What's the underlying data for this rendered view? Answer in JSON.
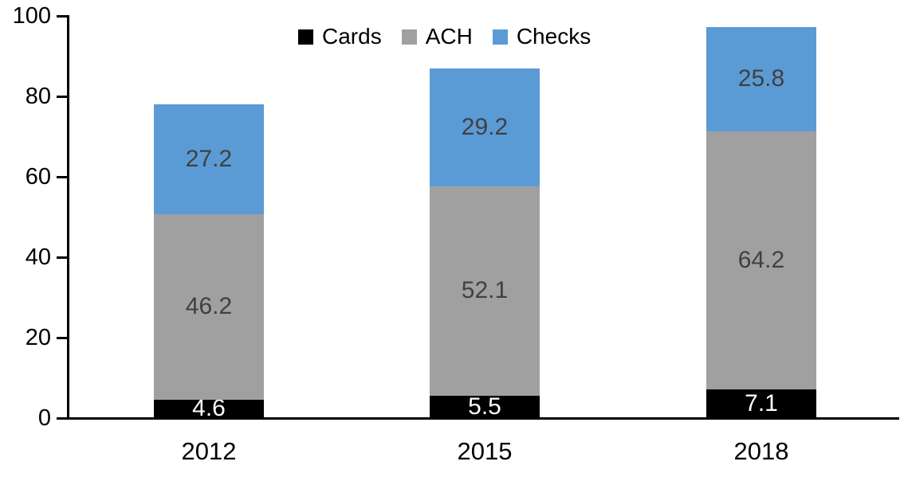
{
  "chart_data": {
    "type": "bar",
    "stacked": true,
    "title": "",
    "categories": [
      "2012",
      "2015",
      "2018"
    ],
    "series": [
      {
        "name": "Cards",
        "color": "#000000",
        "label_color": "#ffffff",
        "values": [
          4.6,
          5.5,
          7.1
        ]
      },
      {
        "name": "ACH",
        "color": "#a0a0a0",
        "label_color": "#404040",
        "values": [
          46.2,
          52.1,
          64.2
        ]
      },
      {
        "name": "Checks",
        "color": "#5b9bd5",
        "label_color": "#404040",
        "values": [
          27.2,
          29.2,
          25.8
        ]
      }
    ],
    "y_ticks": [
      "0",
      "20",
      "40",
      "60",
      "80",
      "100"
    ],
    "ylim": [
      0,
      100
    ],
    "xlabel": "",
    "ylabel": "",
    "grid": false,
    "legend_position": "top",
    "axis_color": "#000000"
  }
}
